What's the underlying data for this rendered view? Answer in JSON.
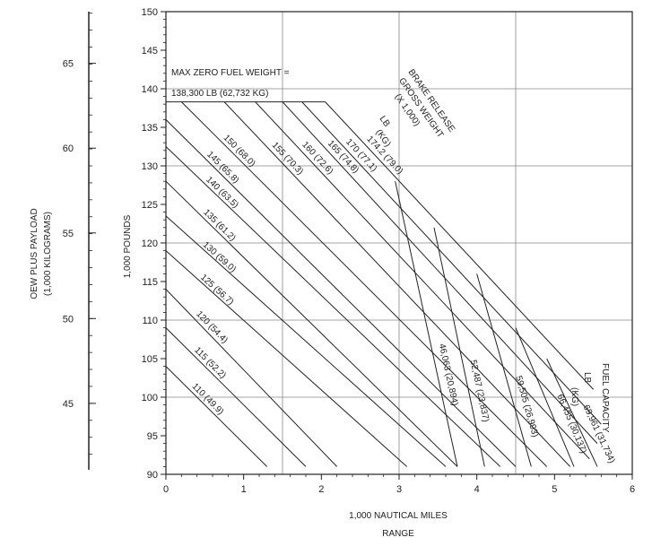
{
  "chart_data": {
    "type": "line",
    "xlabel": "1,000 NAUTICAL MILES",
    "xlabel2": "RANGE",
    "ylabel": "1,000 POUNDS",
    "y2label": "OEW PLUS PAYLOAD",
    "y2label2": "(1,000 KILOGRAMS)",
    "xlim": [
      0,
      6
    ],
    "ylim": [
      90,
      150
    ],
    "x_ticks": [
      "0",
      "1",
      "2",
      "3",
      "4",
      "5",
      "6"
    ],
    "y_ticks": [
      "90",
      "95",
      "100",
      "105",
      "110",
      "115",
      "120",
      "125",
      "130",
      "135",
      "140",
      "145",
      "150"
    ],
    "y2_ticks": [
      "45",
      "50",
      "55",
      "60",
      "65"
    ],
    "y2_tick_values_lb": [
      99.2,
      110.2,
      121.3,
      132.3,
      143.3
    ],
    "annotation": {
      "line1": "MAX ZERO FUEL WEIGHT =",
      "line2": "138,300 LB (62,732 KG)",
      "y_value": 138.3
    },
    "brake_release_header": {
      "line1": "BRAKE RELEASE",
      "line2": "GROSS WEIGHT",
      "line3": "(X 1,000)",
      "line4": "LB",
      "line5": "(KG)"
    },
    "fuel_capacity_header": {
      "line1": "FUEL CAPACITY",
      "line2": "LB",
      "line3": "(KG)"
    },
    "series": [
      {
        "name": "110  (49.9)",
        "x": [
          0,
          1.3
        ],
        "y": [
          104,
          91
        ]
      },
      {
        "name": "115  (52.2)",
        "x": [
          0,
          1.8
        ],
        "y": [
          109,
          91
        ]
      },
      {
        "name": "120  (54.4)",
        "x": [
          0,
          2.2
        ],
        "y": [
          114,
          91
        ]
      },
      {
        "name": "125  (56.7)",
        "x": [
          0,
          3.1
        ],
        "y": [
          119,
          91
        ]
      },
      {
        "name": "130  (59.0)",
        "x": [
          0,
          3.6
        ],
        "y": [
          123.5,
          91
        ]
      },
      {
        "name": "135  (61.2)",
        "x": [
          0,
          3.75
        ],
        "y": [
          128,
          91
        ]
      },
      {
        "name": "140  (63.5)",
        "x": [
          0,
          4.3
        ],
        "y": [
          132.5,
          91
        ]
      },
      {
        "name": "145  (65.8)",
        "x": [
          0,
          4.5
        ],
        "y": [
          136,
          91
        ]
      },
      {
        "name": "150  (68.0)",
        "x": [
          0.2,
          4.9
        ],
        "y": [
          138.3,
          91
        ]
      },
      {
        "name": "155  (70.3)",
        "x": [
          0.75,
          5.2
        ],
        "y": [
          138.3,
          91
        ]
      },
      {
        "name": "160  (72.6)",
        "x": [
          1.15,
          5.45
        ],
        "y": [
          138.3,
          92
        ]
      },
      {
        "name": "165  (74.8)",
        "x": [
          1.5,
          5.55
        ],
        "y": [
          138.3,
          94
        ]
      },
      {
        "name": "170  (77.1)",
        "x": [
          1.75,
          5.6
        ],
        "y": [
          138.3,
          96.5
        ]
      },
      {
        "name": "174.2  (79.0)",
        "x": [
          2.05,
          5.5
        ],
        "y": [
          138.3,
          101
        ]
      }
    ],
    "fuel_capacity_lines": [
      {
        "name": "46,063  (20,894)",
        "x": [
          2.95,
          3.75
        ],
        "y": [
          128,
          91
        ]
      },
      {
        "name": "52,487  (23,837)",
        "x": [
          3.45,
          4.1
        ],
        "y": [
          122,
          91
        ]
      },
      {
        "name": "59,505  (26,993)",
        "x": [
          4.0,
          4.7
        ],
        "y": [
          116,
          91
        ]
      },
      {
        "name": "66,455  (30,137)",
        "x": [
          4.5,
          5.25
        ],
        "y": [
          109,
          91
        ]
      },
      {
        "name": "69,961  (31,734)",
        "x": [
          4.9,
          5.55
        ],
        "y": [
          105,
          91
        ]
      }
    ]
  }
}
